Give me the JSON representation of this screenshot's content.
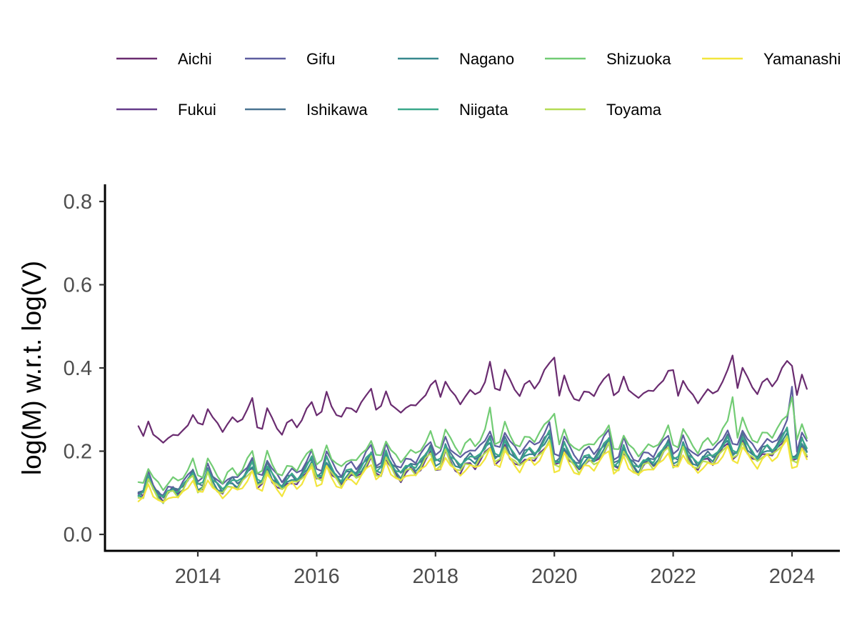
{
  "chart_data": {
    "type": "line",
    "title": "",
    "xlabel": "",
    "ylabel": "log(M) w.r.t. log(V)",
    "xlim": [
      2012.95,
      2024.35
    ],
    "ylim": [
      0.0,
      0.8
    ],
    "x_ticks": [
      2014,
      2016,
      2018,
      2020,
      2022,
      2024
    ],
    "x_tick_labels": [
      "2014",
      "2016",
      "2018",
      "2020",
      "2022",
      "2024"
    ],
    "y_ticks": [
      0.0,
      0.2,
      0.4,
      0.6,
      0.8
    ],
    "y_tick_labels": [
      "0.0",
      "0.2",
      "0.4",
      "0.6",
      "0.8"
    ],
    "grid": false,
    "legend_position": "top",
    "x_start": 2013.0,
    "x_step_months": 1,
    "monthly_pattern": [
      0.0,
      0.002,
      0.036,
      0.014,
      0.0,
      -0.01,
      0.006,
      0.012,
      0.004,
      0.016,
      0.032,
      0.048
    ],
    "legend_order": [
      "Aichi",
      "Gifu",
      "Nagano",
      "Shizuoka",
      "Yamanashi",
      "Fukui",
      "Ishikawa",
      "Niigata",
      "Toyama"
    ],
    "series": [
      {
        "name": "Aichi",
        "color": "#6a2c70",
        "levels": [
          0.228,
          0.262,
          0.257,
          0.292,
          0.3,
          0.328,
          0.35,
          0.331,
          0.335,
          0.33,
          0.355,
          0.333
        ],
        "amp": 1.25
      },
      {
        "name": "Fukui",
        "color": "#653c8a",
        "levels": [
          0.095,
          0.11,
          0.115,
          0.13,
          0.142,
          0.158,
          0.172,
          0.165,
          0.16,
          0.168,
          0.185,
          0.175
        ],
        "amp": 1.1
      },
      {
        "name": "Gifu",
        "color": "#5e5e9f",
        "levels": [
          0.103,
          0.128,
          0.14,
          0.156,
          0.17,
          0.192,
          0.207,
          0.192,
          0.185,
          0.195,
          0.212,
          0.202
        ],
        "amp": 1.2
      },
      {
        "name": "Ishikawa",
        "color": "#4a7491",
        "levels": [
          0.098,
          0.118,
          0.128,
          0.143,
          0.157,
          0.176,
          0.19,
          0.177,
          0.17,
          0.18,
          0.198,
          0.187
        ],
        "amp": 1.15
      },
      {
        "name": "Nagano",
        "color": "#37888e",
        "levels": [
          0.092,
          0.112,
          0.122,
          0.137,
          0.151,
          0.17,
          0.184,
          0.171,
          0.165,
          0.175,
          0.192,
          0.182
        ],
        "amp": 1.15
      },
      {
        "name": "Niigata",
        "color": "#3aa88a",
        "levels": [
          0.097,
          0.118,
          0.127,
          0.142,
          0.156,
          0.175,
          0.189,
          0.176,
          0.169,
          0.179,
          0.196,
          0.186
        ],
        "amp": 1.15
      },
      {
        "name": "Shizuoka",
        "color": "#72cc74",
        "levels": [
          0.12,
          0.14,
          0.152,
          0.17,
          0.186,
          0.21,
          0.222,
          0.208,
          0.2,
          0.212,
          0.232,
          0.22
        ],
        "amp": 1.2
      },
      {
        "name": "Toyama",
        "color": "#b4dc55",
        "levels": [
          0.09,
          0.106,
          0.116,
          0.13,
          0.143,
          0.16,
          0.173,
          0.162,
          0.157,
          0.166,
          0.183,
          0.172
        ],
        "amp": 1.1
      },
      {
        "name": "Yamanashi",
        "color": "#f2e53d",
        "levels": [
          0.082,
          0.098,
          0.108,
          0.121,
          0.135,
          0.152,
          0.165,
          0.154,
          0.149,
          0.158,
          0.174,
          0.164
        ],
        "amp": 1.05
      }
    ],
    "peaks": [
      {
        "x": 2013.0,
        "Aichi": 0.26
      },
      {
        "x": 2016.92,
        "Aichi": 0.35
      },
      {
        "x": 2018.0,
        "Aichi": 0.37
      },
      {
        "x": 2018.92,
        "Aichi": 0.415,
        "Shizuoka": 0.305
      },
      {
        "x": 2020.0,
        "Aichi": 0.425,
        "Shizuoka": 0.29
      },
      {
        "x": 2022.0,
        "Aichi": 0.395
      },
      {
        "x": 2023.0,
        "Aichi": 0.43,
        "Shizuoka": 0.33
      },
      {
        "x": 2024.0,
        "Aichi": 0.405,
        "Shizuoka": 0.33,
        "Gifu": 0.355
      }
    ]
  }
}
